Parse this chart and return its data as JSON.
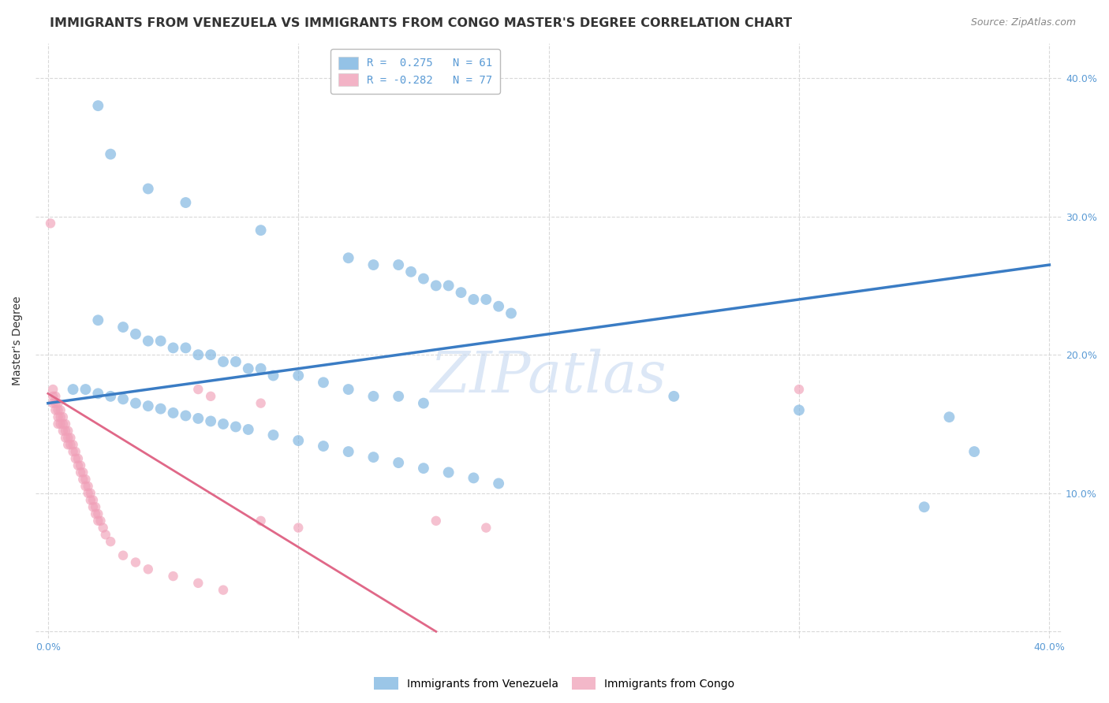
{
  "title": "IMMIGRANTS FROM VENEZUELA VS IMMIGRANTS FROM CONGO MASTER'S DEGREE CORRELATION CHART",
  "source": "Source: ZipAtlas.com",
  "ylabel": "Master's Degree",
  "watermark": "ZIPatlas",
  "legend_entries": [
    {
      "label": "R =  0.275   N = 61",
      "color": "#a8c8f0"
    },
    {
      "label": "R = -0.282   N = 77",
      "color": "#f4a8bc"
    }
  ],
  "xlim": [
    -0.005,
    0.405
  ],
  "ylim": [
    -0.005,
    0.425
  ],
  "blue_scatter": [
    [
      0.02,
      0.38
    ],
    [
      0.025,
      0.345
    ],
    [
      0.04,
      0.32
    ],
    [
      0.055,
      0.31
    ],
    [
      0.085,
      0.29
    ],
    [
      0.12,
      0.27
    ],
    [
      0.13,
      0.265
    ],
    [
      0.14,
      0.265
    ],
    [
      0.145,
      0.26
    ],
    [
      0.15,
      0.255
    ],
    [
      0.155,
      0.25
    ],
    [
      0.16,
      0.25
    ],
    [
      0.165,
      0.245
    ],
    [
      0.17,
      0.24
    ],
    [
      0.175,
      0.24
    ],
    [
      0.18,
      0.235
    ],
    [
      0.185,
      0.23
    ],
    [
      0.02,
      0.225
    ],
    [
      0.03,
      0.22
    ],
    [
      0.035,
      0.215
    ],
    [
      0.04,
      0.21
    ],
    [
      0.045,
      0.21
    ],
    [
      0.05,
      0.205
    ],
    [
      0.055,
      0.205
    ],
    [
      0.06,
      0.2
    ],
    [
      0.065,
      0.2
    ],
    [
      0.07,
      0.195
    ],
    [
      0.075,
      0.195
    ],
    [
      0.08,
      0.19
    ],
    [
      0.085,
      0.19
    ],
    [
      0.09,
      0.185
    ],
    [
      0.1,
      0.185
    ],
    [
      0.11,
      0.18
    ],
    [
      0.12,
      0.175
    ],
    [
      0.13,
      0.17
    ],
    [
      0.14,
      0.17
    ],
    [
      0.15,
      0.165
    ],
    [
      0.01,
      0.175
    ],
    [
      0.015,
      0.175
    ],
    [
      0.02,
      0.172
    ],
    [
      0.025,
      0.17
    ],
    [
      0.03,
      0.168
    ],
    [
      0.035,
      0.165
    ],
    [
      0.04,
      0.163
    ],
    [
      0.045,
      0.161
    ],
    [
      0.05,
      0.158
    ],
    [
      0.055,
      0.156
    ],
    [
      0.06,
      0.154
    ],
    [
      0.065,
      0.152
    ],
    [
      0.07,
      0.15
    ],
    [
      0.075,
      0.148
    ],
    [
      0.08,
      0.146
    ],
    [
      0.09,
      0.142
    ],
    [
      0.1,
      0.138
    ],
    [
      0.11,
      0.134
    ],
    [
      0.12,
      0.13
    ],
    [
      0.13,
      0.126
    ],
    [
      0.14,
      0.122
    ],
    [
      0.15,
      0.118
    ],
    [
      0.16,
      0.115
    ],
    [
      0.17,
      0.111
    ],
    [
      0.18,
      0.107
    ],
    [
      0.25,
      0.17
    ],
    [
      0.3,
      0.16
    ],
    [
      0.35,
      0.09
    ],
    [
      0.36,
      0.155
    ],
    [
      0.37,
      0.13
    ]
  ],
  "pink_scatter": [
    [
      0.001,
      0.295
    ],
    [
      0.002,
      0.175
    ],
    [
      0.002,
      0.17
    ],
    [
      0.002,
      0.165
    ],
    [
      0.003,
      0.17
    ],
    [
      0.003,
      0.165
    ],
    [
      0.003,
      0.16
    ],
    [
      0.004,
      0.165
    ],
    [
      0.004,
      0.16
    ],
    [
      0.004,
      0.155
    ],
    [
      0.004,
      0.15
    ],
    [
      0.005,
      0.16
    ],
    [
      0.005,
      0.155
    ],
    [
      0.005,
      0.15
    ],
    [
      0.006,
      0.155
    ],
    [
      0.006,
      0.15
    ],
    [
      0.006,
      0.145
    ],
    [
      0.007,
      0.15
    ],
    [
      0.007,
      0.145
    ],
    [
      0.007,
      0.14
    ],
    [
      0.008,
      0.145
    ],
    [
      0.008,
      0.14
    ],
    [
      0.008,
      0.135
    ],
    [
      0.009,
      0.14
    ],
    [
      0.009,
      0.135
    ],
    [
      0.01,
      0.135
    ],
    [
      0.01,
      0.13
    ],
    [
      0.011,
      0.13
    ],
    [
      0.011,
      0.125
    ],
    [
      0.012,
      0.125
    ],
    [
      0.012,
      0.12
    ],
    [
      0.013,
      0.12
    ],
    [
      0.013,
      0.115
    ],
    [
      0.014,
      0.115
    ],
    [
      0.014,
      0.11
    ],
    [
      0.015,
      0.11
    ],
    [
      0.015,
      0.105
    ],
    [
      0.016,
      0.105
    ],
    [
      0.016,
      0.1
    ],
    [
      0.017,
      0.1
    ],
    [
      0.017,
      0.095
    ],
    [
      0.018,
      0.095
    ],
    [
      0.018,
      0.09
    ],
    [
      0.019,
      0.09
    ],
    [
      0.019,
      0.085
    ],
    [
      0.02,
      0.085
    ],
    [
      0.02,
      0.08
    ],
    [
      0.021,
      0.08
    ],
    [
      0.022,
      0.075
    ],
    [
      0.023,
      0.07
    ],
    [
      0.025,
      0.065
    ],
    [
      0.03,
      0.055
    ],
    [
      0.035,
      0.05
    ],
    [
      0.04,
      0.045
    ],
    [
      0.05,
      0.04
    ],
    [
      0.06,
      0.035
    ],
    [
      0.07,
      0.03
    ],
    [
      0.06,
      0.175
    ],
    [
      0.065,
      0.17
    ],
    [
      0.085,
      0.165
    ],
    [
      0.085,
      0.08
    ],
    [
      0.1,
      0.075
    ],
    [
      0.155,
      0.08
    ],
    [
      0.175,
      0.075
    ],
    [
      0.3,
      0.175
    ]
  ],
  "blue_line": {
    "x": [
      0.0,
      0.4
    ],
    "y": [
      0.165,
      0.265
    ]
  },
  "pink_line": {
    "x": [
      0.0,
      0.155
    ],
    "y": [
      0.172,
      0.0
    ]
  },
  "blue_color": "#7ab3e0",
  "pink_color": "#f0a0b8",
  "blue_line_color": "#3a7cc4",
  "pink_line_color": "#e06888",
  "grid_color": "#d0d0d0",
  "bg_color": "#ffffff",
  "title_color": "#333333",
  "axis_label_color": "#5b9bd5",
  "title_fontsize": 11.5,
  "source_fontsize": 9,
  "ylabel_fontsize": 10,
  "tick_fontsize": 9,
  "legend_fontsize": 10,
  "watermark_color": "#c5d8f0",
  "watermark_fontsize": 52
}
